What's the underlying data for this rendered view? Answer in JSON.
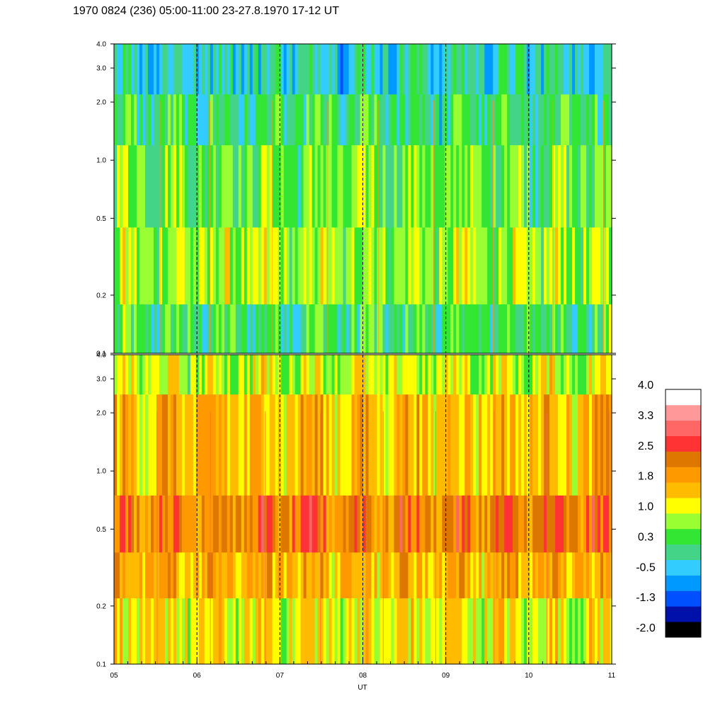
{
  "title": "1970 0824 (236) 05:00-11:00 23-27.8.1970  17-12 UT",
  "chart_data": {
    "type": "heatmap",
    "xlabel": "UT",
    "x_tick_labels": [
      "05",
      "06",
      "07",
      "08",
      "09",
      "10",
      "11"
    ],
    "x_range": [
      5,
      11
    ],
    "y_scale": "log",
    "y_range": [
      0.1,
      4.0
    ],
    "y_ticks": [
      0.1,
      0.2,
      0.5,
      1.0,
      2.0,
      3.0,
      4.0
    ],
    "y_tick_labels": [
      "0.1",
      "0.2",
      "0.5",
      "1.0",
      "2.0",
      "3.0",
      "4.0"
    ],
    "grid": "vertical dashed lines at each hour",
    "panels": [
      {
        "name": "",
        "bands": [
          {
            "y_from": 0.1,
            "y_to": 0.18,
            "value": 0.3
          },
          {
            "y_from": 0.18,
            "y_to": 0.45,
            "value": 0.8
          },
          {
            "y_from": 0.45,
            "y_to": 1.2,
            "value": 0.6
          },
          {
            "y_from": 1.2,
            "y_to": 2.2,
            "value": 0.2
          },
          {
            "y_from": 2.2,
            "y_to": 4.0,
            "value": -0.1
          }
        ]
      },
      {
        "name": "",
        "bands": [
          {
            "y_from": 0.1,
            "y_to": 0.22,
            "value": 1.2
          },
          {
            "y_from": 0.22,
            "y_to": 0.38,
            "value": 1.7
          },
          {
            "y_from": 0.38,
            "y_to": 0.75,
            "value": 2.2
          },
          {
            "y_from": 0.75,
            "y_to": 2.5,
            "value": 1.6
          },
          {
            "y_from": 2.5,
            "y_to": 4.0,
            "value": 1.0
          }
        ]
      }
    ],
    "colorbar": {
      "tick_labels": [
        "4.0",
        "3.3",
        "2.5",
        "1.8",
        "1.0",
        "0.3",
        "-0.5",
        "-1.3",
        "-2.0"
      ],
      "levels": [
        {
          "color": "#000000"
        },
        {
          "color": "#0010aa"
        },
        {
          "color": "#0050ff"
        },
        {
          "color": "#0099ff"
        },
        {
          "color": "#33ccff"
        },
        {
          "color": "#44d488"
        },
        {
          "color": "#33e633"
        },
        {
          "color": "#99ff33"
        },
        {
          "color": "#ffff00"
        },
        {
          "color": "#ffbb00"
        },
        {
          "color": "#ff9900"
        },
        {
          "color": "#dd7700"
        },
        {
          "color": "#ff3333"
        },
        {
          "color": "#ff6666"
        },
        {
          "color": "#ff9999"
        },
        {
          "color": "#ffffff"
        }
      ],
      "value_range": [
        -2.0,
        4.0
      ]
    }
  }
}
